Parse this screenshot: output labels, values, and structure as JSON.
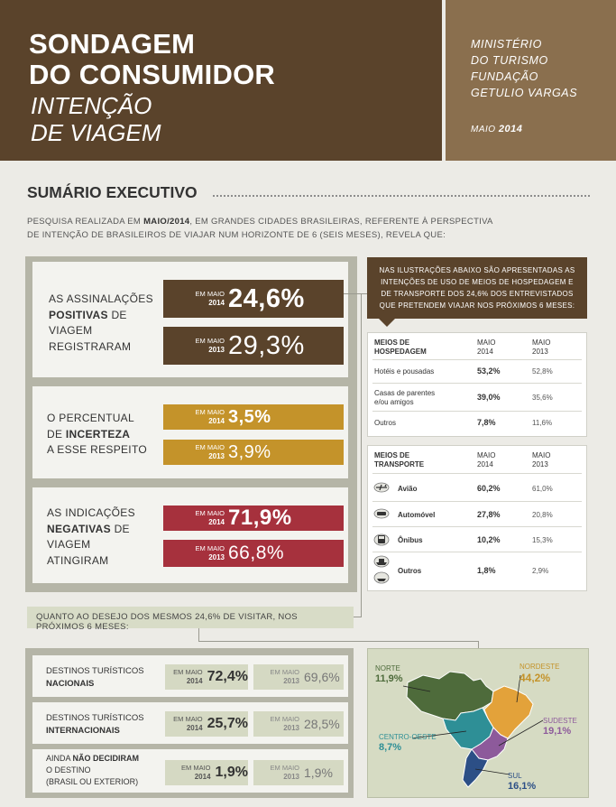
{
  "header": {
    "title_line1": "SONDAGEM",
    "title_line2": "DO CONSUMIDOR",
    "sub_line1": "INTENÇÃO",
    "sub_line2": "DE VIAGEM",
    "org_line1": "MINISTÉRIO",
    "org_line2": "DO TURISMO",
    "org_line3": "FUNDAÇÃO",
    "org_line4": "GETULIO VARGAS",
    "date_month": "MAIO",
    "date_year": "2014"
  },
  "section": {
    "title": "SUMÁRIO EXECUTIVO",
    "intro_a": "Pesquisa realizada em ",
    "intro_b": "maio/2014",
    "intro_c": ", em grandes cidades brasileiras, referente à perspectiva de intenção de brasileiros de viajar num horizonte de 6 (seis meses), revela que:"
  },
  "positive": {
    "t1": "As assinalações",
    "t2": "positivas",
    "t3": " de",
    "t4": "viagem",
    "t5": "registraram",
    "lbl": "EM MAIO",
    "y1": "2014",
    "v1": "24,6%",
    "y2": "2013",
    "v2": "29,3%"
  },
  "uncertain": {
    "t1": "O percentual",
    "t2": "de ",
    "t3": "incerteza",
    "t4": "a esse respeito",
    "lbl": "EM MAIO",
    "y1": "2014",
    "v1": "3,5%",
    "y2": "2013",
    "v2": "3,9%"
  },
  "negative": {
    "t1": "As indicações",
    "t2": "negativas",
    "t3": " de",
    "t4": "viagem",
    "t5": "atingiram",
    "lbl": "EM MAIO",
    "y1": "2014",
    "v1": "71,9%",
    "y2": "2013",
    "v2": "66,8%"
  },
  "note": "Nas ilustrações abaixo são apresentadas as intenções de uso de meios de hospedagem e de transporte dos 24,6% dos entrevistados que pretendem viajar nos próximos 6 meses:",
  "lodging": {
    "h1": "MEIOS DE",
    "h2": "HOSPEDAGEM",
    "c1a": "MAIO",
    "c1b": "2014",
    "c2a": "MAIO",
    "c2b": "2013",
    "rows": [
      {
        "label1": "Hotéis e pousadas",
        "label2": "",
        "v2014": "53,2%",
        "v2013": "52,8%"
      },
      {
        "label1": "Casas de parentes",
        "label2": "e/ou amigos",
        "v2014": "39,0%",
        "v2013": "35,6%"
      },
      {
        "label1": "Outros",
        "label2": "",
        "v2014": "7,8%",
        "v2013": "11,6%"
      }
    ]
  },
  "transport": {
    "h1": "MEIOS DE",
    "h2": "TRANSPORTE",
    "c1a": "MAIO",
    "c1b": "2014",
    "c2a": "MAIO",
    "c2b": "2013",
    "rows": [
      {
        "icon": "airplane-icon",
        "label": "Avião",
        "v2014": "60,2%",
        "v2013": "61,0%"
      },
      {
        "icon": "car-icon",
        "label": "Automóvel",
        "v2014": "27,8%",
        "v2013": "20,8%"
      },
      {
        "icon": "bus-icon",
        "label": "Ônibus",
        "v2014": "10,2%",
        "v2013": "15,3%"
      },
      {
        "icon": "ship-icon",
        "label": "Outros",
        "v2014": "1,8%",
        "v2013": "2,9%"
      }
    ]
  },
  "quanto": "Quanto ao desejo dos mesmos 24,6% de visitar, nos próximos 6 meses:",
  "destinations": {
    "lbl": "EM MAIO",
    "rows": [
      {
        "t1": "Destinos turísticos",
        "t2": "nacionais",
        "t3": "",
        "y1": "2014",
        "v1": "72,4%",
        "y2": "2013",
        "v2": "69,6%"
      },
      {
        "t1": "Destinos turísticos",
        "t2": "internacionais",
        "t3": "",
        "y1": "2014",
        "v1": "25,7%",
        "y2": "2013",
        "v2": "28,5%"
      },
      {
        "t1a": "Ainda ",
        "t1b": "não decidiram",
        "t2": "o destino",
        "t3": "(Brasil ou exterior)",
        "y1": "2014",
        "v1": "1,9%",
        "y2": "2013",
        "v2": "1,9%"
      }
    ]
  },
  "map": {
    "regions": [
      {
        "name": "NORTE",
        "value": "11,9%",
        "color": "#4e6b3b"
      },
      {
        "name": "NORDESTE",
        "value": "44,2%",
        "color": "#e3a23a"
      },
      {
        "name": "CENTRO-OESTE",
        "value": "8,7%",
        "color": "#2e8f96"
      },
      {
        "name": "SUDESTE",
        "value": "19,1%",
        "color": "#8d5a9b"
      },
      {
        "name": "SUL",
        "value": "16,1%",
        "color": "#2c4f86"
      }
    ]
  }
}
